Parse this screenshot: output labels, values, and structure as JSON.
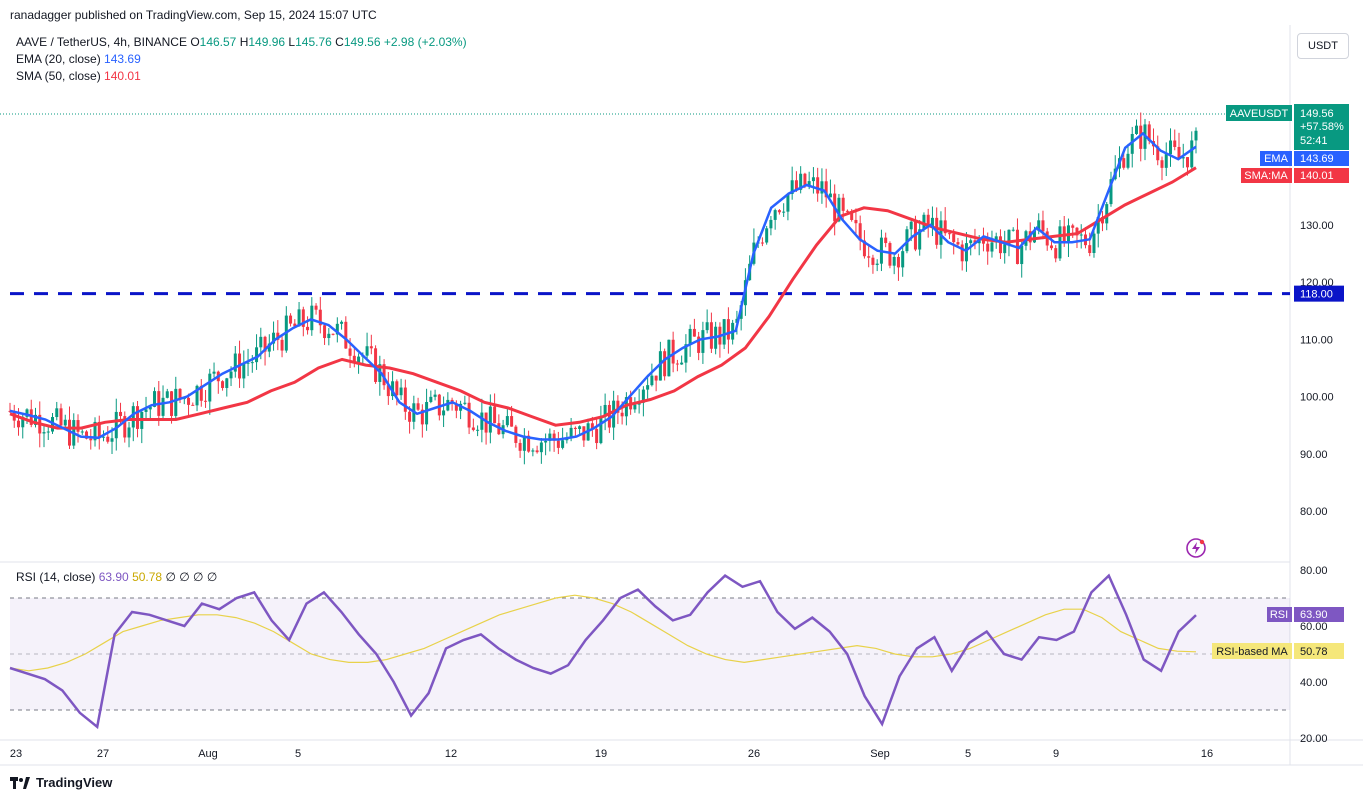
{
  "header": {
    "text": "ranadagger published on TradingView.com, Sep 15, 2024 15:07 UTC"
  },
  "symbol": {
    "title": "AAVE / TetherUS, 4h, BINANCE",
    "open_label": "O",
    "open": "146.57",
    "high_label": "H",
    "high": "149.96",
    "low_label": "L",
    "low": "145.76",
    "close_label": "C",
    "close": "149.56",
    "change": "+2.98 (+2.03%)"
  },
  "indicators": {
    "ema_label": "EMA (20, close)",
    "ema_value": "143.69",
    "sma_label": "SMA (50, close)",
    "sma_value": "140.01"
  },
  "currency_button": "USDT",
  "price_badges": {
    "symbol": "AAVEUSDT",
    "price": "149.56",
    "change_pct": "+57.58%",
    "countdown": "52:41",
    "ema_tag": "EMA",
    "ema_value": "143.69",
    "sma_tag": "SMA:MA",
    "sma_value": "140.01",
    "level_value": "118.00"
  },
  "rsi_legend": {
    "label": "RSI (14, close)",
    "rsi": "63.90",
    "ma": "50.78",
    "extra": "∅ ∅ ∅ ∅"
  },
  "rsi_badges": {
    "rsi_tag": "RSI",
    "rsi_value": "63.90",
    "ma_tag": "RSI-based MA",
    "ma_value": "50.78"
  },
  "footer": {
    "brand": "TradingView"
  },
  "colors": {
    "up": "#089981",
    "down": "#f23645",
    "ema": "#2962ff",
    "sma": "#f23645",
    "rsi": "#7e57c2",
    "rsi_ma": "#e8d24a",
    "level": "#0a14c8"
  },
  "chart_data": [
    {
      "type": "candlestick",
      "title": "AAVE / TetherUS, 4h, BINANCE",
      "y_ticks": [
        80,
        90,
        100,
        110,
        120,
        130
      ],
      "ylim": [
        75,
        165
      ],
      "x_tick_labels": [
        "23",
        "27",
        "Aug",
        "5",
        "12",
        "19",
        "26",
        "Sep",
        "5",
        "9",
        "16"
      ],
      "support_level": 118.0,
      "series": [
        {
          "name": "EMA",
          "values": [
            97.5,
            96.8,
            96.0,
            94.5,
            93.0,
            92.8,
            94.5,
            97.0,
            98.5,
            99.0,
            100.0,
            102.0,
            104.0,
            105.5,
            107.0,
            110.0,
            112.0,
            113.5,
            112.5,
            110.0,
            107.0,
            104.0,
            99.0,
            97.0,
            98.0,
            99.0,
            97.5,
            95.5,
            94.0,
            93.0,
            92.5,
            92.5,
            93.0,
            94.5,
            96.5,
            100.0,
            103.5,
            106.5,
            108.5,
            110.0,
            110.5,
            111.5,
            125.0,
            133.0,
            135.5,
            137.0,
            136.0,
            131.0,
            127.5,
            125.5,
            125.0,
            128.0,
            130.0,
            127.0,
            125.5,
            128.0,
            127.0,
            126.0,
            129.5,
            127.0,
            127.0,
            127.5,
            135.5,
            143.5,
            146.0,
            143.0,
            141.5,
            143.69
          ]
        },
        {
          "name": "SMA:MA",
          "values": [
            97.0,
            95.5,
            94.5,
            94.5,
            95.5,
            96.0,
            96.0,
            96.0,
            97.0,
            98.0,
            99.0,
            101.0,
            102.5,
            105.0,
            106.5,
            105.5,
            105.0,
            104.0,
            102.5,
            101.0,
            99.0,
            98.0,
            96.5,
            95.0,
            95.5,
            96.5,
            98.5,
            99.5,
            101.0,
            103.5,
            105.5,
            108.5,
            114.0,
            120.5,
            126.5,
            131.5,
            133.0,
            132.5,
            131.0,
            129.5,
            128.5,
            127.5,
            127.0,
            127.5,
            128.0,
            128.5,
            131.0,
            133.5,
            135.5,
            137.5,
            140.01
          ]
        }
      ],
      "candle_summary": {
        "range_low": 76.5,
        "range_high": 159.5,
        "last_open": 146.57,
        "last_high": 149.96,
        "last_low": 145.76,
        "last_close": 149.56
      }
    },
    {
      "type": "line",
      "title": "RSI (14, close)",
      "y_ticks": [
        20,
        40,
        60,
        80
      ],
      "ylim": [
        20,
        80
      ],
      "bands": [
        30,
        50,
        70
      ],
      "series": [
        {
          "name": "RSI",
          "values": [
            45,
            43,
            41,
            37,
            29,
            24,
            57,
            65,
            64,
            62,
            60,
            68,
            66,
            70,
            72,
            62,
            55,
            68,
            72,
            65,
            57,
            50,
            40,
            28,
            36,
            52,
            55,
            57,
            52,
            48,
            45,
            43,
            46,
            55,
            62,
            70,
            73,
            67,
            62,
            64,
            72,
            78,
            74,
            76,
            65,
            59,
            63,
            58,
            50,
            35,
            25,
            42,
            52,
            56,
            44,
            54,
            58,
            50,
            48,
            56,
            55,
            58,
            72,
            78,
            64,
            48,
            44,
            58,
            63.9
          ]
        },
        {
          "name": "RSI-based MA",
          "values": [
            45,
            44,
            45,
            47,
            50,
            54,
            58,
            60,
            62,
            63,
            64,
            64,
            63,
            61,
            58,
            54,
            50,
            48,
            47,
            47,
            48,
            50,
            52,
            55,
            58,
            61,
            64,
            66,
            68,
            70,
            71,
            70,
            68,
            65,
            61,
            57,
            53,
            50,
            48,
            47,
            48,
            49,
            50,
            51,
            52,
            53,
            52,
            50,
            49,
            49,
            50,
            52,
            55,
            58,
            61,
            64,
            66,
            66,
            63,
            58,
            55,
            52,
            51,
            50.78
          ]
        }
      ]
    }
  ]
}
